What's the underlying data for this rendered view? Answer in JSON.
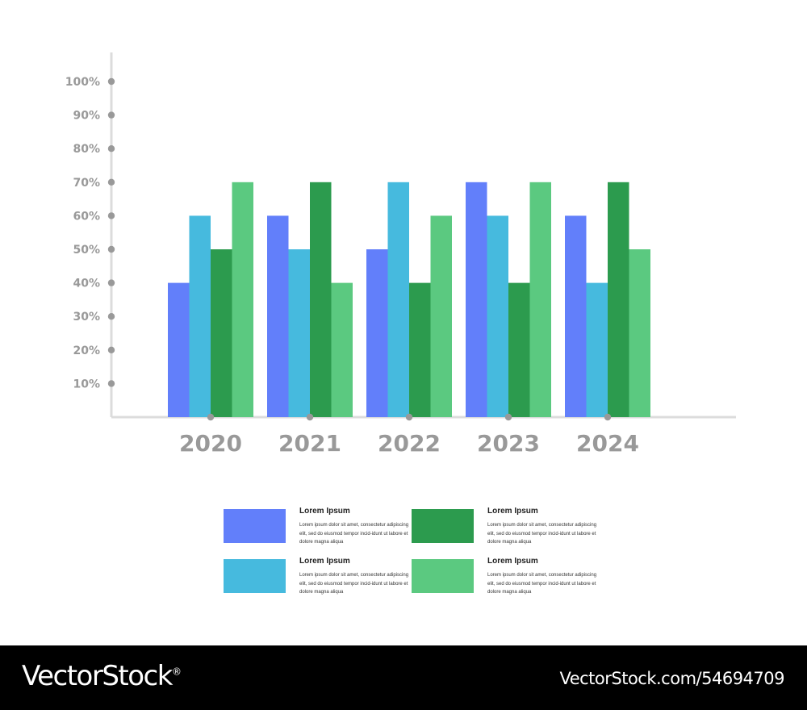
{
  "chart_data": {
    "type": "bar",
    "categories": [
      "2020",
      "2021",
      "2022",
      "2023",
      "2024"
    ],
    "series": [
      {
        "color": "#627FFA",
        "values": [
          40,
          60,
          50,
          70,
          60
        ]
      },
      {
        "color": "#46BADE",
        "values": [
          60,
          50,
          70,
          60,
          40
        ]
      },
      {
        "color": "#2C9B4E",
        "values": [
          50,
          70,
          40,
          40,
          70
        ]
      },
      {
        "color": "#5BC980",
        "values": [
          70,
          40,
          60,
          70,
          50
        ]
      }
    ],
    "y_ticks": [
      "10%",
      "20%",
      "30%",
      "40%",
      "50%",
      "60%",
      "70%",
      "80%",
      "90%",
      "100%"
    ],
    "ylim": [
      0,
      100
    ],
    "grid": false
  },
  "legend": {
    "items": [
      {
        "title": "Lorem Ipsum",
        "desc": "Lorem ipsum dolor sit amet, consectetur adipiscing elit, sed do eiusmod tempor incid-idunt ut labore et dolore magna aliqua",
        "color": "#627FFA"
      },
      {
        "title": "Lorem Ipsum",
        "desc": "Lorem ipsum dolor sit amet, consectetur adipiscing elit, sed do eiusmod tempor incid-idunt ut labore et dolore magna aliqua",
        "color": "#2C9B4E"
      },
      {
        "title": "Lorem Ipsum",
        "desc": "Lorem ipsum dolor sit amet, consectetur adipiscing elit, sed do eiusmod tempor incid-idunt ut labore et dolore magna aliqua",
        "color": "#46BADE"
      },
      {
        "title": "Lorem Ipsum",
        "desc": "Lorem ipsum dolor sit amet, consectetur adipiscing elit, sed do eiusmod tempor incid-idunt ut labore et dolore magna aliqua",
        "color": "#5BC980"
      }
    ]
  },
  "footer": {
    "brand": "VectorStock",
    "brand_mark": "®",
    "image_id": "VectorStock.com/54694709"
  }
}
